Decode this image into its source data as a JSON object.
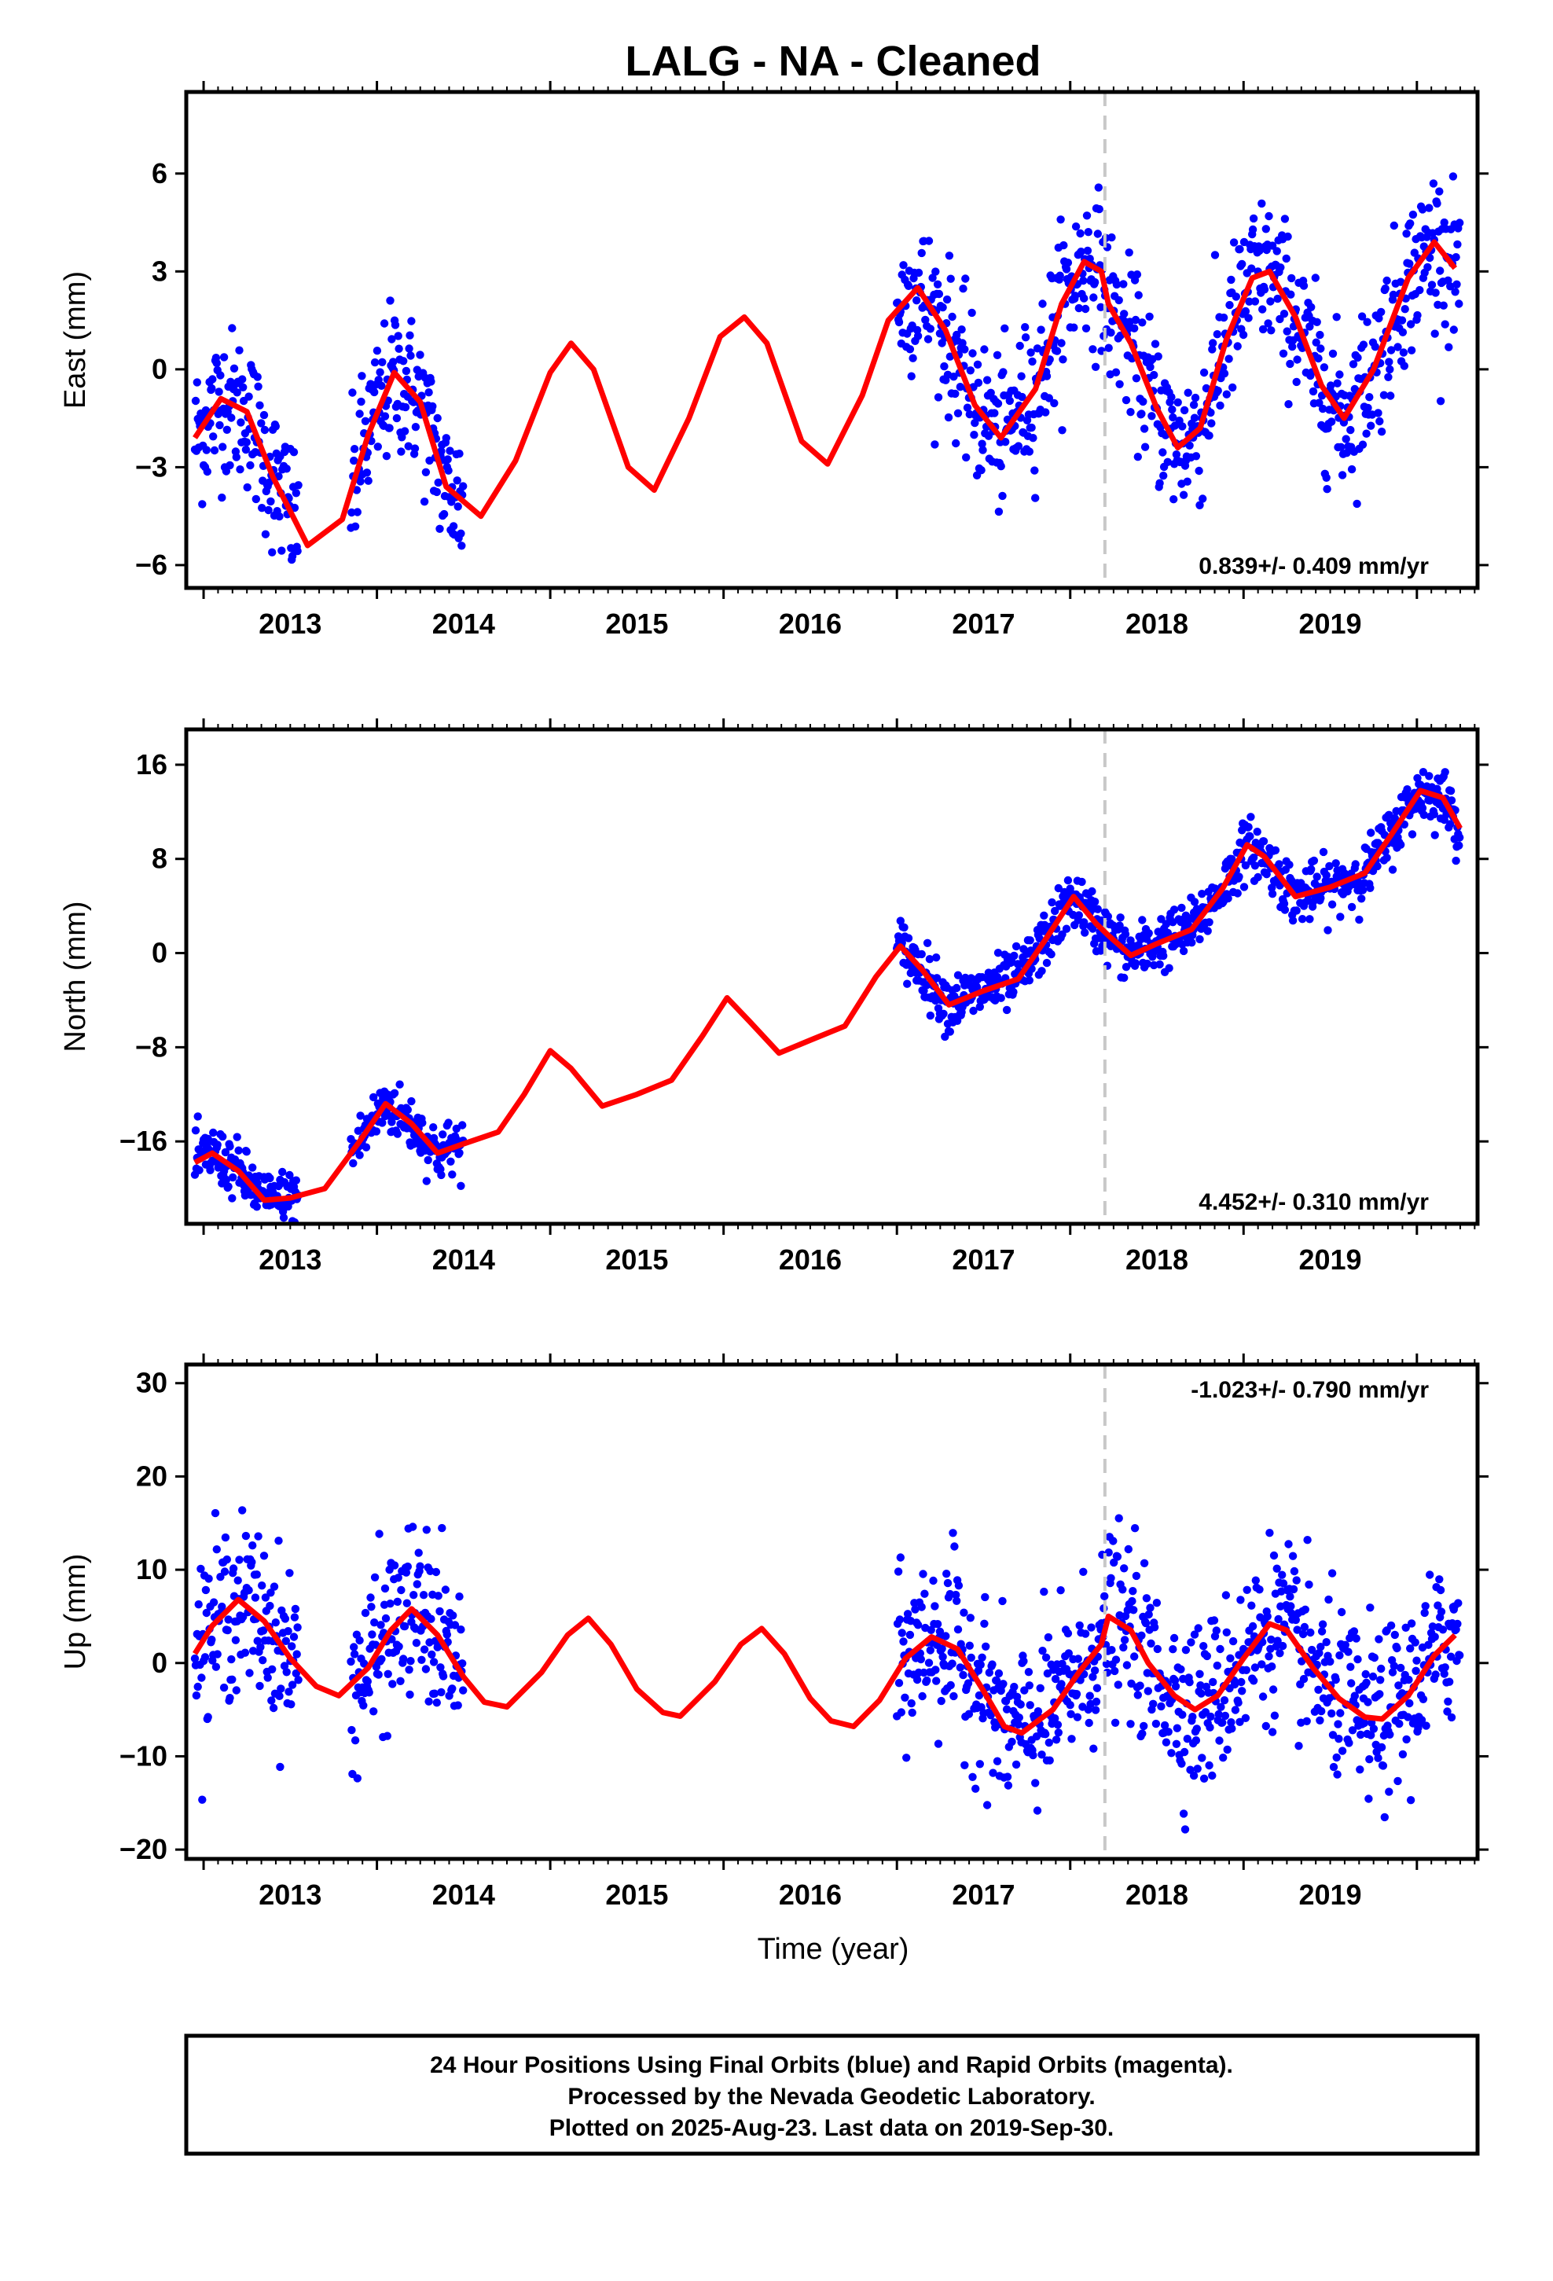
{
  "title": "LALG  - NA - Cleaned",
  "xlabel": "Time (year)",
  "footer": {
    "lines": [
      "24 Hour Positions Using Final Orbits (blue) and Rapid Orbits (magenta).",
      "Processed by the Nevada Geodetic Laboratory.",
      "Plotted on 2025-Aug-23. Last data on 2019-Sep-30."
    ]
  },
  "colors": {
    "data_points": "#0000ff",
    "model_fit": "#ff0000",
    "equipment_change_line": "#c8c8c8",
    "frame": "#000000"
  },
  "chart_data": [
    {
      "type": "scatter",
      "name": "east",
      "ylabel": "East (mm)",
      "xlim": [
        2012.4,
        2019.85
      ],
      "ylim": [
        -6.7,
        8.5
      ],
      "xticks": [
        2013,
        2014,
        2015,
        2016,
        2017,
        2018,
        2019
      ],
      "yticks": [
        -6,
        -3,
        0,
        3,
        6
      ],
      "ytick_labels": [
        "−6",
        "−3",
        "0",
        "3",
        "6"
      ],
      "rate_text": "0.839+/- 0.409 mm/yr",
      "rate_position": "bottom-right",
      "step_line_x": 2017.7,
      "data_coverage": [
        [
          2012.45,
          2013.05
        ],
        [
          2013.35,
          2014.0
        ],
        [
          2016.5,
          2019.75
        ]
      ],
      "noise_sd": 1.15,
      "model_curve": [
        [
          2012.45,
          -2.1
        ],
        [
          2012.6,
          -0.9
        ],
        [
          2012.75,
          -1.3
        ],
        [
          2012.9,
          -3.3
        ],
        [
          2013.1,
          -5.4
        ],
        [
          2013.3,
          -4.6
        ],
        [
          2013.45,
          -2.0
        ],
        [
          2013.6,
          -0.1
        ],
        [
          2013.75,
          -1.0
        ],
        [
          2013.9,
          -3.6
        ],
        [
          2014.1,
          -4.5
        ],
        [
          2014.3,
          -2.8
        ],
        [
          2014.5,
          -0.1
        ],
        [
          2014.62,
          0.8
        ],
        [
          2014.75,
          0.0
        ],
        [
          2014.95,
          -3.0
        ],
        [
          2015.1,
          -3.7
        ],
        [
          2015.3,
          -1.5
        ],
        [
          2015.48,
          1.0
        ],
        [
          2015.62,
          1.6
        ],
        [
          2015.75,
          0.8
        ],
        [
          2015.95,
          -2.2
        ],
        [
          2016.1,
          -2.9
        ],
        [
          2016.3,
          -0.8
        ],
        [
          2016.45,
          1.5
        ],
        [
          2016.62,
          2.5
        ],
        [
          2016.78,
          1.2
        ],
        [
          2016.95,
          -1.1
        ],
        [
          2017.1,
          -2.1
        ],
        [
          2017.3,
          -0.6
        ],
        [
          2017.45,
          2.0
        ],
        [
          2017.58,
          3.3
        ],
        [
          2017.68,
          3.0
        ],
        [
          2017.72,
          2.0
        ],
        [
          2017.85,
          0.8
        ],
        [
          2018.0,
          -1.2
        ],
        [
          2018.12,
          -2.4
        ],
        [
          2018.25,
          -1.8
        ],
        [
          2018.4,
          0.9
        ],
        [
          2018.55,
          2.8
        ],
        [
          2018.65,
          3.0
        ],
        [
          2018.8,
          1.6
        ],
        [
          2018.95,
          -0.5
        ],
        [
          2019.08,
          -1.5
        ],
        [
          2019.25,
          0.0
        ],
        [
          2019.45,
          2.8
        ],
        [
          2019.6,
          3.9
        ],
        [
          2019.72,
          3.1
        ]
      ]
    },
    {
      "type": "scatter",
      "name": "north",
      "ylabel": "North (mm)",
      "xlim": [
        2012.4,
        2019.85
      ],
      "ylim": [
        -23.0,
        19.0
      ],
      "xticks": [
        2013,
        2014,
        2015,
        2016,
        2017,
        2018,
        2019
      ],
      "yticks": [
        -16,
        -8,
        0,
        8,
        16
      ],
      "ytick_labels": [
        "−16",
        "−8",
        "0",
        "8",
        "16"
      ],
      "rate_text": "4.452+/- 0.310 mm/yr",
      "rate_position": "bottom-right",
      "step_line_x": 2017.7,
      "data_coverage": [
        [
          2012.45,
          2013.05
        ],
        [
          2013.35,
          2014.0
        ],
        [
          2016.5,
          2019.75
        ]
      ],
      "noise_sd": 1.2,
      "model_curve": [
        [
          2012.45,
          -17.8
        ],
        [
          2012.55,
          -17.0
        ],
        [
          2012.7,
          -18.5
        ],
        [
          2012.85,
          -21.0
        ],
        [
          2013.0,
          -20.8
        ],
        [
          2013.2,
          -20.0
        ],
        [
          2013.4,
          -16.0
        ],
        [
          2013.55,
          -12.8
        ],
        [
          2013.7,
          -14.5
        ],
        [
          2013.85,
          -17.0
        ],
        [
          2014.0,
          -16.2
        ],
        [
          2014.2,
          -15.2
        ],
        [
          2014.35,
          -12.0
        ],
        [
          2014.5,
          -8.3
        ],
        [
          2014.62,
          -9.8
        ],
        [
          2014.8,
          -13.0
        ],
        [
          2015.0,
          -12.0
        ],
        [
          2015.2,
          -10.8
        ],
        [
          2015.38,
          -7.0
        ],
        [
          2015.52,
          -3.8
        ],
        [
          2015.65,
          -5.8
        ],
        [
          2015.82,
          -8.5
        ],
        [
          2016.0,
          -7.4
        ],
        [
          2016.2,
          -6.2
        ],
        [
          2016.38,
          -2.0
        ],
        [
          2016.52,
          0.6
        ],
        [
          2016.65,
          -1.5
        ],
        [
          2016.8,
          -4.4
        ],
        [
          2017.0,
          -3.2
        ],
        [
          2017.2,
          -2.2
        ],
        [
          2017.35,
          1.0
        ],
        [
          2017.52,
          4.8
        ],
        [
          2017.65,
          2.5
        ],
        [
          2017.72,
          1.5
        ],
        [
          2017.85,
          -0.2
        ],
        [
          2018.0,
          0.8
        ],
        [
          2018.2,
          2.0
        ],
        [
          2018.38,
          5.5
        ],
        [
          2018.52,
          9.2
        ],
        [
          2018.62,
          8.2
        ],
        [
          2018.8,
          4.8
        ],
        [
          2019.0,
          5.6
        ],
        [
          2019.2,
          6.8
        ],
        [
          2019.35,
          10.0
        ],
        [
          2019.52,
          13.8
        ],
        [
          2019.65,
          13.2
        ],
        [
          2019.75,
          10.6
        ]
      ]
    },
    {
      "type": "scatter",
      "name": "up",
      "ylabel": "Up (mm)",
      "xlim": [
        2012.4,
        2019.85
      ],
      "ylim": [
        -21.0,
        32.0
      ],
      "xticks": [
        2013,
        2014,
        2015,
        2016,
        2017,
        2018,
        2019
      ],
      "yticks": [
        -20,
        -10,
        0,
        10,
        20,
        30
      ],
      "ytick_labels": [
        "−20",
        "−10",
        "0",
        "10",
        "20",
        "30"
      ],
      "rate_text": "-1.023+/- 0.790 mm/yr",
      "rate_position": "top-right",
      "step_line_x": 2017.7,
      "data_coverage": [
        [
          2012.45,
          2013.05
        ],
        [
          2013.35,
          2014.0
        ],
        [
          2016.5,
          2019.75
        ]
      ],
      "noise_sd": 4.5,
      "model_curve": [
        [
          2012.45,
          1.0
        ],
        [
          2012.55,
          4.0
        ],
        [
          2012.7,
          6.8
        ],
        [
          2012.85,
          4.5
        ],
        [
          2013.0,
          0.5
        ],
        [
          2013.15,
          -2.5
        ],
        [
          2013.28,
          -3.5
        ],
        [
          2013.45,
          -0.5
        ],
        [
          2013.58,
          3.5
        ],
        [
          2013.7,
          5.8
        ],
        [
          2013.85,
          3.0
        ],
        [
          2014.0,
          -1.5
        ],
        [
          2014.12,
          -4.2
        ],
        [
          2014.25,
          -4.7
        ],
        [
          2014.45,
          -1.0
        ],
        [
          2014.6,
          3.0
        ],
        [
          2014.72,
          4.8
        ],
        [
          2014.85,
          2.0
        ],
        [
          2015.0,
          -2.8
        ],
        [
          2015.15,
          -5.3
        ],
        [
          2015.25,
          -5.7
        ],
        [
          2015.45,
          -2.0
        ],
        [
          2015.6,
          2.0
        ],
        [
          2015.72,
          3.7
        ],
        [
          2015.85,
          1.0
        ],
        [
          2016.0,
          -3.8
        ],
        [
          2016.12,
          -6.2
        ],
        [
          2016.25,
          -6.8
        ],
        [
          2016.4,
          -4.0
        ],
        [
          2016.55,
          0.5
        ],
        [
          2016.7,
          2.8
        ],
        [
          2016.85,
          1.5
        ],
        [
          2017.0,
          -3.0
        ],
        [
          2017.12,
          -6.8
        ],
        [
          2017.22,
          -7.5
        ],
        [
          2017.4,
          -5.0
        ],
        [
          2017.55,
          -1.0
        ],
        [
          2017.68,
          2.0
        ],
        [
          2017.72,
          5.0
        ],
        [
          2017.85,
          3.5
        ],
        [
          2017.95,
          0.0
        ],
        [
          2018.1,
          -3.5
        ],
        [
          2018.22,
          -5.0
        ],
        [
          2018.35,
          -3.5
        ],
        [
          2018.5,
          0.5
        ],
        [
          2018.65,
          4.2
        ],
        [
          2018.75,
          3.5
        ],
        [
          2018.9,
          -0.5
        ],
        [
          2019.05,
          -3.8
        ],
        [
          2019.2,
          -5.8
        ],
        [
          2019.3,
          -6.0
        ],
        [
          2019.45,
          -3.5
        ],
        [
          2019.6,
          0.8
        ],
        [
          2019.72,
          3.0
        ]
      ]
    }
  ]
}
